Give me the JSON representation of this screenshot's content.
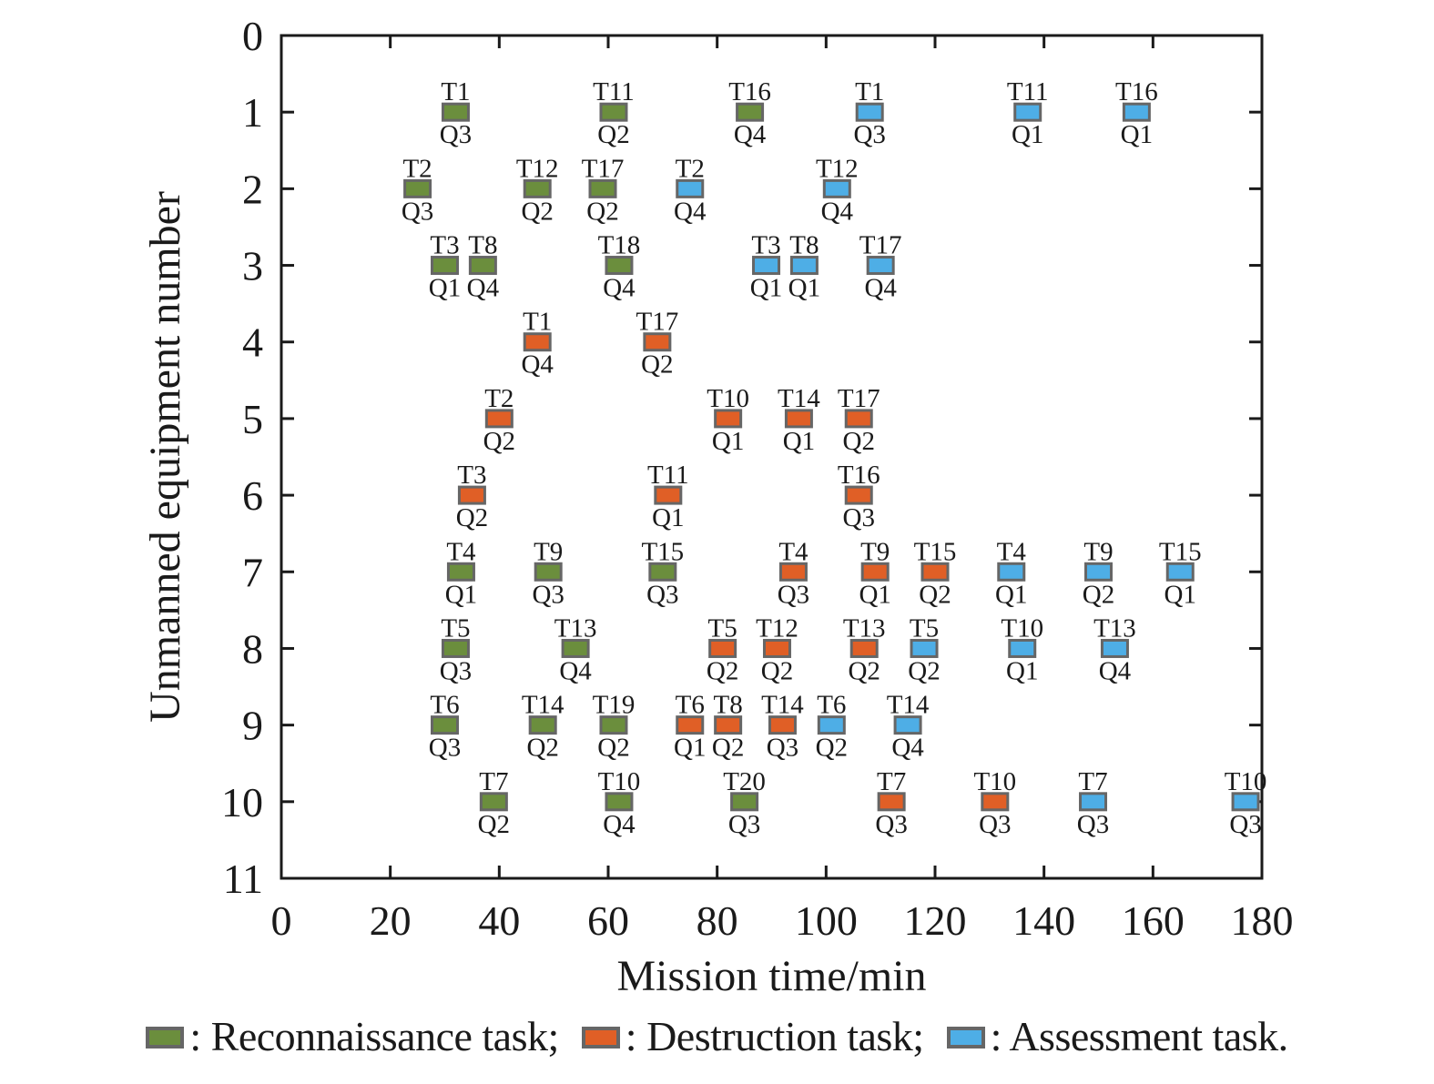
{
  "chart_data": {
    "type": "scatter",
    "title": "",
    "xlabel": "Mission time/min",
    "ylabel": "Unmanned equipment number",
    "xlim": [
      0,
      180
    ],
    "ylim": [
      11,
      0
    ],
    "y_inverted": true,
    "grid": false,
    "xticks": [
      0,
      20,
      40,
      60,
      80,
      100,
      120,
      140,
      160,
      180
    ],
    "yticks": [
      0,
      1,
      2,
      3,
      4,
      5,
      6,
      7,
      8,
      9,
      10,
      11
    ],
    "legend_position": "bottom",
    "categories": [
      {
        "key": "recon",
        "name": "Reconnaissance task",
        "color": "#6b8e3d"
      },
      {
        "key": "destroy",
        "name": "Destruction task",
        "color": "#e05f26"
      },
      {
        "key": "assess",
        "name": "Assessment task",
        "color": "#4eaee6"
      }
    ],
    "legend_text": [
      ": Reconnaissance task;",
      ": Destruction task;",
      ": Assessment task."
    ],
    "points": [
      {
        "equipment": 1,
        "time": 32,
        "task": "T1",
        "quality": "Q3",
        "type": "recon"
      },
      {
        "equipment": 1,
        "time": 61,
        "task": "T11",
        "quality": "Q2",
        "type": "recon"
      },
      {
        "equipment": 1,
        "time": 86,
        "task": "T16",
        "quality": "Q4",
        "type": "recon"
      },
      {
        "equipment": 1,
        "time": 108,
        "task": "T1",
        "quality": "Q3",
        "type": "assess"
      },
      {
        "equipment": 1,
        "time": 137,
        "task": "T11",
        "quality": "Q1",
        "type": "assess"
      },
      {
        "equipment": 1,
        "time": 157,
        "task": "T16",
        "quality": "Q1",
        "type": "assess"
      },
      {
        "equipment": 2,
        "time": 25,
        "task": "T2",
        "quality": "Q3",
        "type": "recon"
      },
      {
        "equipment": 2,
        "time": 47,
        "task": "T12",
        "quality": "Q2",
        "type": "recon"
      },
      {
        "equipment": 2,
        "time": 59,
        "task": "T17",
        "quality": "Q2",
        "type": "recon"
      },
      {
        "equipment": 2,
        "time": 75,
        "task": "T2",
        "quality": "Q4",
        "type": "assess"
      },
      {
        "equipment": 2,
        "time": 102,
        "task": "T12",
        "quality": "Q4",
        "type": "assess"
      },
      {
        "equipment": 3,
        "time": 30,
        "task": "T3",
        "quality": "Q1",
        "type": "recon"
      },
      {
        "equipment": 3,
        "time": 37,
        "task": "T8",
        "quality": "Q4",
        "type": "recon"
      },
      {
        "equipment": 3,
        "time": 62,
        "task": "T18",
        "quality": "Q4",
        "type": "recon"
      },
      {
        "equipment": 3,
        "time": 89,
        "task": "T3",
        "quality": "Q1",
        "type": "assess"
      },
      {
        "equipment": 3,
        "time": 96,
        "task": "T8",
        "quality": "Q1",
        "type": "assess"
      },
      {
        "equipment": 3,
        "time": 110,
        "task": "T17",
        "quality": "Q4",
        "type": "assess"
      },
      {
        "equipment": 4,
        "time": 47,
        "task": "T1",
        "quality": "Q4",
        "type": "destroy"
      },
      {
        "equipment": 4,
        "time": 69,
        "task": "T17",
        "quality": "Q2",
        "type": "destroy"
      },
      {
        "equipment": 5,
        "time": 40,
        "task": "T2",
        "quality": "Q2",
        "type": "destroy"
      },
      {
        "equipment": 5,
        "time": 82,
        "task": "T10",
        "quality": "Q1",
        "type": "destroy"
      },
      {
        "equipment": 5,
        "time": 95,
        "task": "T14",
        "quality": "Q1",
        "type": "destroy"
      },
      {
        "equipment": 5,
        "time": 106,
        "task": "T17",
        "quality": "Q2",
        "type": "destroy"
      },
      {
        "equipment": 6,
        "time": 35,
        "task": "T3",
        "quality": "Q2",
        "type": "destroy"
      },
      {
        "equipment": 6,
        "time": 71,
        "task": "T11",
        "quality": "Q1",
        "type": "destroy"
      },
      {
        "equipment": 6,
        "time": 106,
        "task": "T16",
        "quality": "Q3",
        "type": "destroy"
      },
      {
        "equipment": 7,
        "time": 33,
        "task": "T4",
        "quality": "Q1",
        "type": "recon"
      },
      {
        "equipment": 7,
        "time": 49,
        "task": "T9",
        "quality": "Q3",
        "type": "recon"
      },
      {
        "equipment": 7,
        "time": 70,
        "task": "T15",
        "quality": "Q3",
        "type": "recon"
      },
      {
        "equipment": 7,
        "time": 94,
        "task": "T4",
        "quality": "Q3",
        "type": "destroy"
      },
      {
        "equipment": 7,
        "time": 109,
        "task": "T9",
        "quality": "Q1",
        "type": "destroy"
      },
      {
        "equipment": 7,
        "time": 120,
        "task": "T15",
        "quality": "Q2",
        "type": "destroy"
      },
      {
        "equipment": 7,
        "time": 134,
        "task": "T4",
        "quality": "Q1",
        "type": "assess"
      },
      {
        "equipment": 7,
        "time": 150,
        "task": "T9",
        "quality": "Q2",
        "type": "assess"
      },
      {
        "equipment": 7,
        "time": 165,
        "task": "T15",
        "quality": "Q1",
        "type": "assess"
      },
      {
        "equipment": 8,
        "time": 32,
        "task": "T5",
        "quality": "Q3",
        "type": "recon"
      },
      {
        "equipment": 8,
        "time": 54,
        "task": "T13",
        "quality": "Q4",
        "type": "recon"
      },
      {
        "equipment": 8,
        "time": 81,
        "task": "T5",
        "quality": "Q2",
        "type": "destroy"
      },
      {
        "equipment": 8,
        "time": 91,
        "task": "T12",
        "quality": "Q2",
        "type": "destroy"
      },
      {
        "equipment": 8,
        "time": 107,
        "task": "T13",
        "quality": "Q2",
        "type": "destroy"
      },
      {
        "equipment": 8,
        "time": 118,
        "task": "T5",
        "quality": "Q2",
        "type": "assess"
      },
      {
        "equipment": 8,
        "time": 136,
        "task": "T10",
        "quality": "Q1",
        "type": "assess"
      },
      {
        "equipment": 8,
        "time": 153,
        "task": "T13",
        "quality": "Q4",
        "type": "assess"
      },
      {
        "equipment": 9,
        "time": 30,
        "task": "T6",
        "quality": "Q3",
        "type": "recon"
      },
      {
        "equipment": 9,
        "time": 48,
        "task": "T14",
        "quality": "Q2",
        "type": "recon"
      },
      {
        "equipment": 9,
        "time": 61,
        "task": "T19",
        "quality": "Q2",
        "type": "recon"
      },
      {
        "equipment": 9,
        "time": 75,
        "task": "T6",
        "quality": "Q1",
        "type": "destroy"
      },
      {
        "equipment": 9,
        "time": 82,
        "task": "T8",
        "quality": "Q2",
        "type": "destroy"
      },
      {
        "equipment": 9,
        "time": 92,
        "task": "T14",
        "quality": "Q3",
        "type": "destroy"
      },
      {
        "equipment": 9,
        "time": 101,
        "task": "T6",
        "quality": "Q2",
        "type": "assess"
      },
      {
        "equipment": 9,
        "time": 115,
        "task": "T14",
        "quality": "Q4",
        "type": "assess"
      },
      {
        "equipment": 10,
        "time": 39,
        "task": "T7",
        "quality": "Q2",
        "type": "recon"
      },
      {
        "equipment": 10,
        "time": 62,
        "task": "T10",
        "quality": "Q4",
        "type": "recon"
      },
      {
        "equipment": 10,
        "time": 85,
        "task": "T20",
        "quality": "Q3",
        "type": "recon"
      },
      {
        "equipment": 10,
        "time": 112,
        "task": "T7",
        "quality": "Q3",
        "type": "destroy"
      },
      {
        "equipment": 10,
        "time": 131,
        "task": "T10",
        "quality": "Q3",
        "type": "destroy"
      },
      {
        "equipment": 10,
        "time": 149,
        "task": "T7",
        "quality": "Q3",
        "type": "assess"
      },
      {
        "equipment": 10,
        "time": 177,
        "task": "T10",
        "quality": "Q3",
        "type": "assess"
      }
    ]
  }
}
